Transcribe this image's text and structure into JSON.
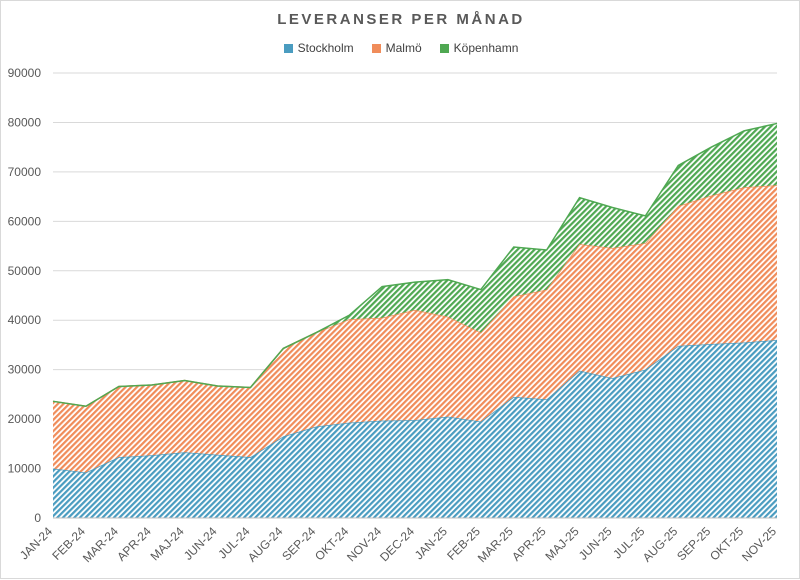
{
  "chart_data": {
    "type": "area",
    "stacked": true,
    "title": "LEVERANSER PER MÅNAD",
    "xlabel": "",
    "ylabel": "",
    "ylim": [
      0,
      90000
    ],
    "yticks": [
      "0",
      "10000",
      "20000",
      "30000",
      "40000",
      "50000",
      "60000",
      "70000",
      "80000",
      "90000"
    ],
    "grid": true,
    "legend_position": "top",
    "categories": [
      "JAN-24",
      "FEB-24",
      "MAR-24",
      "APR-24",
      "MAJ-24",
      "JUN-24",
      "JUL-24",
      "AUG-24",
      "SEP-24",
      "OKT-24",
      "NOV-24",
      "DEC-24",
      "JAN-25",
      "FEB-25",
      "MAR-25",
      "APR-25",
      "MAJ-25",
      "JUN-25",
      "JUL-25",
      "AUG-25",
      "SEP-25",
      "OKT-25",
      "NOV-25"
    ],
    "series": [
      {
        "name": "Stockholm",
        "color": "#4a9cc0",
        "values": [
          10000,
          9200,
          12300,
          12700,
          13300,
          12800,
          12300,
          16500,
          18500,
          19300,
          19700,
          19800,
          20500,
          19500,
          24500,
          24000,
          29800,
          28300,
          30000,
          34800,
          35200,
          35500,
          36000
        ]
      },
      {
        "name": "Malmö",
        "color": "#f08c5a",
        "values": [
          13600,
          13400,
          14300,
          14200,
          14500,
          13900,
          14100,
          17800,
          19000,
          20900,
          20800,
          22300,
          20200,
          18000,
          20300,
          22200,
          25600,
          26300,
          25600,
          28300,
          30000,
          31400,
          31300
        ]
      },
      {
        "name": "Köpenhamn",
        "color": "#4fa852",
        "values": [
          0,
          0,
          0,
          0,
          0,
          0,
          0,
          0,
          0,
          800,
          6300,
          5600,
          7500,
          8700,
          10000,
          8000,
          9400,
          8200,
          5500,
          8200,
          9800,
          11400,
          12500
        ]
      }
    ]
  }
}
